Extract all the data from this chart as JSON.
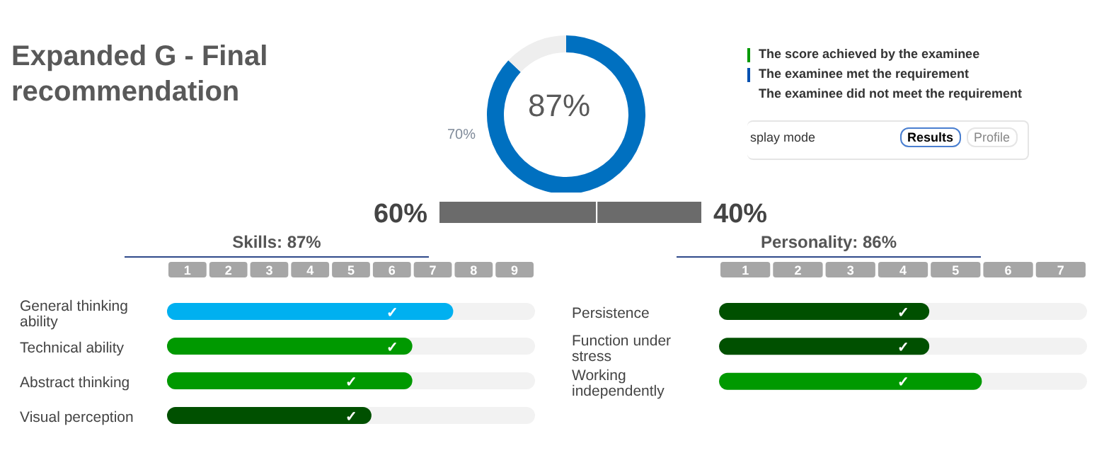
{
  "chart_data": [
    {
      "type": "donut",
      "title": "Expanded G - Final recommendation",
      "categories": [
        null,
        null
      ],
      "values": [
        87,
        13
      ],
      "colors": [
        "#0070c0",
        "#eeeeee"
      ],
      "annotations": [
        "87%",
        "70%",
        "The score achieved by the examinee",
        "The examinee met the requirement",
        "The examinee did not meet the requirement",
        "splay mode",
        "Results",
        "Profile"
      ]
    },
    {
      "type": "bar",
      "orientation": "horizontal",
      "stacked": true,
      "categories": [
        null
      ],
      "series": [
        {
          "color": "#6b6b6b",
          "values": [
            60
          ],
          "value_labels": [
            "60%"
          ]
        },
        {
          "color": "#6b6b6b",
          "values": [
            40
          ],
          "value_labels": [
            "40%"
          ]
        }
      ]
    },
    {
      "type": "bar",
      "orientation": "horizontal",
      "title": "Skills: 87%",
      "categories": [
        "General thinking ability",
        "Technical ability",
        "Abstract thinking",
        "Visual perception"
      ],
      "values": [
        7,
        6,
        6,
        5
      ],
      "colors": [
        "#00b0f0",
        "#009900",
        "#009900",
        "#005000"
      ],
      "xlim": [
        0,
        9
      ],
      "xticks": [
        {
          "value": 0.5,
          "label": "1"
        },
        {
          "value": 1.5,
          "label": "2"
        },
        {
          "value": 2.5,
          "label": "3"
        },
        {
          "value": 3.5,
          "label": "4"
        },
        {
          "value": 4.5,
          "label": "5"
        },
        {
          "value": 5.5,
          "label": "6"
        },
        {
          "value": 6.5,
          "label": "7"
        },
        {
          "value": 7.5,
          "label": "8"
        },
        {
          "value": 8.5,
          "label": "9"
        }
      ],
      "annotations": [
        {
          "text": "✓",
          "x": 5.5,
          "y": "General thinking ability"
        },
        {
          "text": "✓",
          "x": 5.5,
          "y": "Technical ability"
        },
        {
          "text": "✓",
          "x": 4.5,
          "y": "Abstract thinking"
        },
        {
          "text": "✓",
          "x": 4.5,
          "y": "Visual perception"
        }
      ]
    },
    {
      "type": "bar",
      "orientation": "horizontal",
      "title": "Personality: 86%",
      "categories": [
        "Persistence",
        "Function under stress",
        "Working independently"
      ],
      "values": [
        4,
        4,
        5
      ],
      "colors": [
        "#005000",
        "#005000",
        "#009900"
      ],
      "xlim": [
        0,
        7
      ],
      "xticks": [
        {
          "value": 0.5,
          "label": "1"
        },
        {
          "value": 1.5,
          "label": "2"
        },
        {
          "value": 2.5,
          "label": "3"
        },
        {
          "value": 3.5,
          "label": "4"
        },
        {
          "value": 4.5,
          "label": "5"
        },
        {
          "value": 5.5,
          "label": "6"
        },
        {
          "value": 6.5,
          "label": "7"
        }
      ],
      "annotations": [
        {
          "text": "✓",
          "x": 3.5,
          "y": "Persistence"
        },
        {
          "text": "✓",
          "x": 3.5,
          "y": "Function under stress"
        },
        {
          "text": "✓",
          "x": 3.5,
          "y": "Working independently"
        }
      ]
    }
  ]
}
